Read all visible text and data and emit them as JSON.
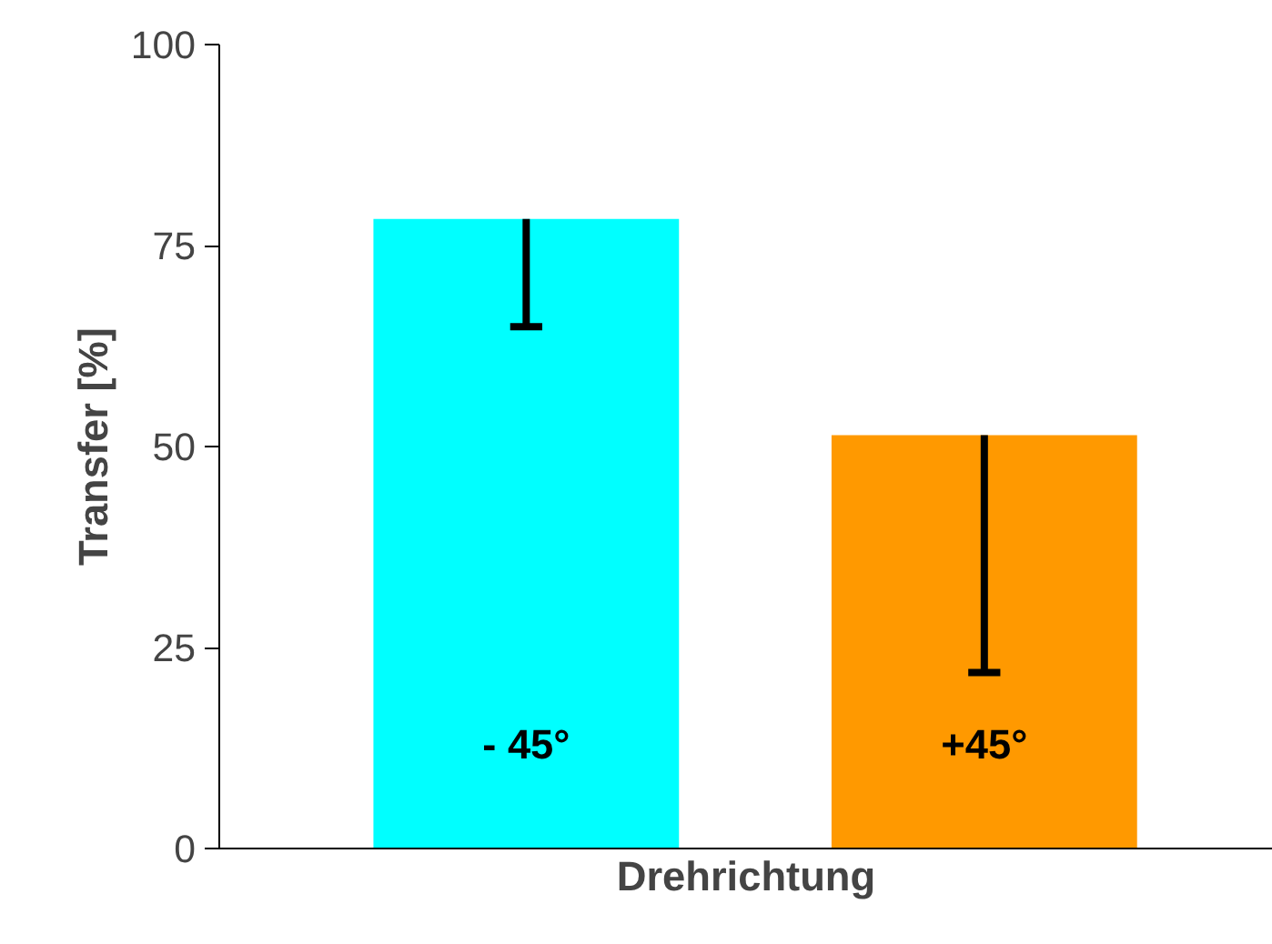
{
  "chart_data": {
    "type": "bar",
    "xlabel": "Drehrichtung",
    "ylabel": "Transfer [%]",
    "categories": [
      "- 45°",
      "+45°"
    ],
    "values": [
      78.3,
      51.4
    ],
    "colors": [
      "#00ffff",
      "#ff9900"
    ],
    "errors": [
      [
        64.9,
        78.3
      ],
      [
        21.9,
        51.4
      ]
    ],
    "ylim": [
      0,
      100
    ],
    "yticks": [
      0,
      25,
      50,
      75,
      100
    ],
    "grid": false
  }
}
